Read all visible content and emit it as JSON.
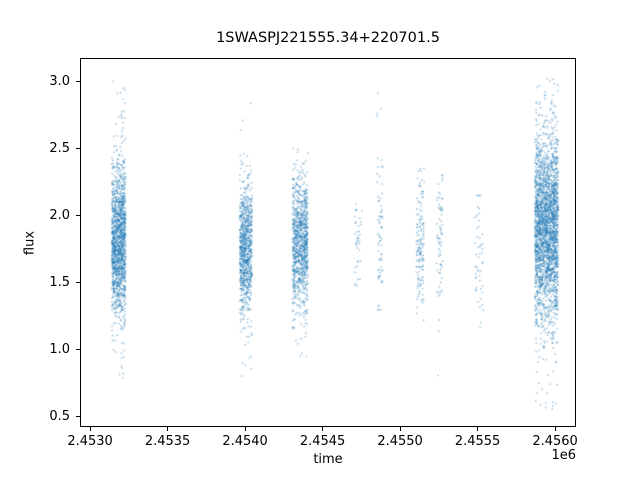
{
  "chart_data": {
    "type": "scatter",
    "title": "1SWASPJ221555.34+220701.5",
    "xlabel": "time",
    "ylabel": "flux",
    "x_offset_label": "1e6",
    "grid": false,
    "legend": "none",
    "marker_color": "#1f77b4",
    "marker_alpha": 0.45,
    "marker_size_px": 1.5,
    "xlim": [
      2452935,
      2456135
    ],
    "ylim": [
      0.425,
      3.175
    ],
    "x_ticks": {
      "values": [
        2453000,
        2453500,
        2454000,
        2454500,
        2455000,
        2455500,
        2456000
      ],
      "labels": [
        "2.4530",
        "2.4535",
        "2.4540",
        "2.4545",
        "2.4550",
        "2.4555",
        "2.4560"
      ]
    },
    "y_ticks": {
      "values": [
        0.5,
        1.0,
        1.5,
        2.0,
        2.5,
        3.0
      ],
      "labels": [
        "0.5",
        "1.0",
        "1.5",
        "2.0",
        "2.5",
        "3.0"
      ]
    },
    "clusters": [
      {
        "x": 2453185,
        "x_spread": 45,
        "n": 1400,
        "flux_mean": 1.8,
        "flux_sigma": 0.28,
        "flux_min": 0.65,
        "flux_max": 3.0,
        "outlier_frac": 0.025
      },
      {
        "x": 2453215,
        "x_spread": 15,
        "n": 70,
        "flux_mean": 2.0,
        "flux_sigma": 0.4,
        "flux_min": 1.0,
        "flux_max": 2.95,
        "outlier_frac": 0.08
      },
      {
        "x": 2454005,
        "x_spread": 40,
        "n": 900,
        "flux_mean": 1.75,
        "flux_sigma": 0.25,
        "flux_min": 0.75,
        "flux_max": 2.9,
        "outlier_frac": 0.02
      },
      {
        "x": 2454355,
        "x_spread": 50,
        "n": 1000,
        "flux_mean": 1.8,
        "flux_sigma": 0.25,
        "flux_min": 0.9,
        "flux_max": 2.5,
        "outlier_frac": 0.02
      },
      {
        "x": 2454730,
        "x_spread": 25,
        "n": 40,
        "flux_mean": 1.85,
        "flux_sigma": 0.2,
        "flux_min": 1.45,
        "flux_max": 2.3,
        "outlier_frac": 0.03
      },
      {
        "x": 2454870,
        "x_spread": 20,
        "n": 70,
        "flux_mean": 1.9,
        "flux_sigma": 0.35,
        "flux_min": 1.3,
        "flux_max": 3.0,
        "outlier_frac": 0.06
      },
      {
        "x": 2455130,
        "x_spread": 25,
        "n": 150,
        "flux_mean": 1.75,
        "flux_sigma": 0.27,
        "flux_min": 1.15,
        "flux_max": 2.35,
        "outlier_frac": 0.03
      },
      {
        "x": 2455255,
        "x_spread": 20,
        "n": 70,
        "flux_mean": 1.8,
        "flux_sigma": 0.3,
        "flux_min": 0.8,
        "flux_max": 2.3,
        "outlier_frac": 0.05
      },
      {
        "x": 2455510,
        "x_spread": 25,
        "n": 50,
        "flux_mean": 1.7,
        "flux_sigma": 0.25,
        "flux_min": 1.1,
        "flux_max": 2.15,
        "outlier_frac": 0.04
      },
      {
        "x": 2455945,
        "x_spread": 75,
        "n": 2600,
        "flux_mean": 1.9,
        "flux_sigma": 0.35,
        "flux_min": 0.55,
        "flux_max": 3.05,
        "outlier_frac": 0.04
      }
    ]
  }
}
